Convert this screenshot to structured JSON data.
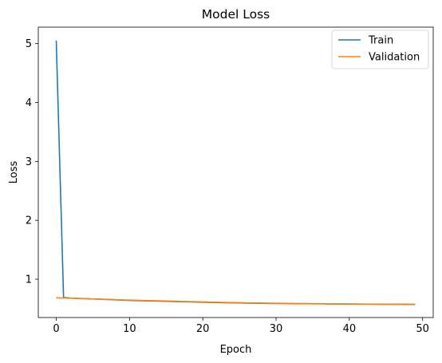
{
  "chart_data": {
    "type": "line",
    "title": "Model Loss",
    "xlabel": "Epoch",
    "ylabel": "Loss",
    "xlim": [
      -2.45,
      51.45
    ],
    "ylim": [
      0.35,
      5.28
    ],
    "xticks": [
      0,
      10,
      20,
      30,
      40,
      50
    ],
    "yticks": [
      1,
      2,
      3,
      4,
      5
    ],
    "grid": false,
    "legend": "top-right",
    "series": [
      {
        "name": "Train",
        "color": "#1f77b4",
        "x": [
          0,
          1,
          2,
          3,
          4,
          5,
          6,
          7,
          8,
          9,
          10,
          11,
          12,
          13,
          14,
          15,
          16,
          17,
          18,
          19,
          20,
          21,
          22,
          23,
          24,
          25,
          26,
          27,
          28,
          29,
          30,
          31,
          32,
          33,
          34,
          35,
          36,
          37,
          38,
          39,
          40,
          41,
          42,
          43,
          44,
          45,
          46,
          47,
          48,
          49
        ],
        "values": [
          5.05,
          0.69,
          0.68,
          0.675,
          0.67,
          0.665,
          0.66,
          0.655,
          0.65,
          0.645,
          0.64,
          0.637,
          0.634,
          0.631,
          0.628,
          0.625,
          0.622,
          0.619,
          0.616,
          0.613,
          0.61,
          0.607,
          0.604,
          0.601,
          0.599,
          0.597,
          0.595,
          0.593,
          0.591,
          0.589,
          0.588,
          0.587,
          0.586,
          0.585,
          0.584,
          0.583,
          0.582,
          0.581,
          0.58,
          0.579,
          0.578,
          0.577,
          0.576,
          0.576,
          0.575,
          0.575,
          0.574,
          0.574,
          0.573,
          0.573
        ]
      },
      {
        "name": "Validation",
        "color": "#ff7f0e",
        "x": [
          0,
          1,
          2,
          3,
          4,
          5,
          6,
          7,
          8,
          9,
          10,
          11,
          12,
          13,
          14,
          15,
          16,
          17,
          18,
          19,
          20,
          21,
          22,
          23,
          24,
          25,
          26,
          27,
          28,
          29,
          30,
          31,
          32,
          33,
          34,
          35,
          36,
          37,
          38,
          39,
          40,
          41,
          42,
          43,
          44,
          45,
          46,
          47,
          48,
          49
        ],
        "values": [
          0.685,
          0.68,
          0.677,
          0.673,
          0.669,
          0.665,
          0.661,
          0.657,
          0.653,
          0.649,
          0.645,
          0.642,
          0.639,
          0.636,
          0.633,
          0.63,
          0.627,
          0.624,
          0.621,
          0.618,
          0.615,
          0.612,
          0.609,
          0.606,
          0.603,
          0.601,
          0.599,
          0.597,
          0.595,
          0.593,
          0.591,
          0.589,
          0.588,
          0.587,
          0.586,
          0.585,
          0.584,
          0.583,
          0.582,
          0.581,
          0.58,
          0.579,
          0.578,
          0.577,
          0.577,
          0.576,
          0.576,
          0.575,
          0.575,
          0.574
        ]
      }
    ]
  }
}
